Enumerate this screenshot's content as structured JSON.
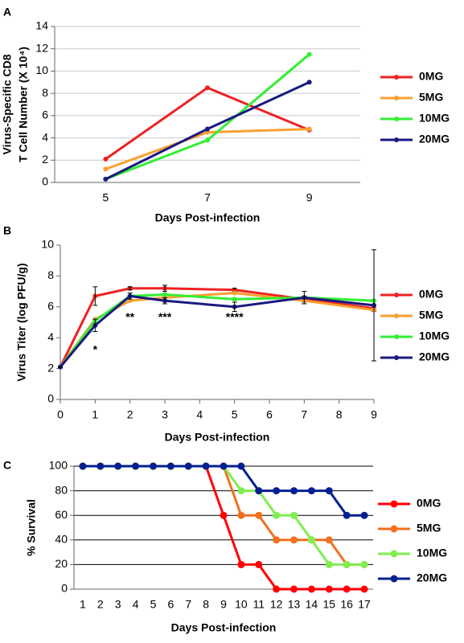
{
  "chart_data": [
    {
      "type": "line",
      "panel": "A",
      "ylabel": [
        "Virus-Specific CD8",
        "T Cell Number (X 10⁴)"
      ],
      "xlabel": "Days Post-infection",
      "categories": [
        "5",
        "7",
        "9"
      ],
      "ylim": [
        0,
        14
      ],
      "yticks": [
        0,
        2,
        4,
        6,
        8,
        10,
        12,
        14
      ],
      "grid": true,
      "grid_color": "#c8c8c8",
      "series": [
        {
          "name": "0MG",
          "color": "#ee2222",
          "values": [
            2.1,
            8.5,
            4.7
          ]
        },
        {
          "name": "5MG",
          "color": "#f8a030",
          "values": [
            1.2,
            4.5,
            4.8
          ]
        },
        {
          "name": "10MG",
          "color": "#33ee33",
          "values": [
            0.3,
            3.8,
            11.5
          ]
        },
        {
          "name": "20MG",
          "color": "#1a1a80",
          "values": [
            0.3,
            4.8,
            9.0
          ]
        }
      ]
    },
    {
      "type": "line",
      "panel": "B",
      "ylabel": [
        "Virus Titer (log PFU/g)"
      ],
      "xlabel": "Days Post-infection",
      "x": [
        0,
        1,
        2,
        3,
        5,
        7,
        9
      ],
      "xlim": [
        0,
        9
      ],
      "xticks": [
        0,
        1,
        2,
        3,
        4,
        5,
        6,
        7,
        8,
        9
      ],
      "ylim": [
        0,
        10
      ],
      "yticks": [
        0,
        2,
        4,
        6,
        8,
        10
      ],
      "grid": false,
      "series": [
        {
          "name": "0MG",
          "color": "#ee2222",
          "values": [
            2.1,
            6.7,
            7.2,
            7.2,
            7.1,
            6.5,
            5.9
          ],
          "errors": [
            0,
            0.6,
            0.1,
            0.2,
            0.1,
            0.2,
            0.2
          ]
        },
        {
          "name": "5MG",
          "color": "#f8a030",
          "values": [
            2.1,
            5.2,
            6.4,
            6.6,
            6.9,
            6.4,
            5.8
          ]
        },
        {
          "name": "10MG",
          "color": "#33ee33",
          "values": [
            2.1,
            5.1,
            6.7,
            6.8,
            6.5,
            6.6,
            6.4
          ]
        },
        {
          "name": "20MG",
          "color": "#1a1a80",
          "values": [
            2.1,
            4.8,
            6.7,
            6.4,
            6.0,
            6.6,
            6.1
          ],
          "errors": [
            0,
            0.4,
            0.2,
            0.2,
            0.3,
            0.4,
            3.6
          ]
        }
      ],
      "annotations": [
        {
          "text": "*",
          "x": 1,
          "y": 3.2
        },
        {
          "text": "**",
          "x": 2,
          "y": 5.3
        },
        {
          "text": "***",
          "x": 3,
          "y": 5.3
        },
        {
          "text": "****",
          "x": 5,
          "y": 5.3
        }
      ]
    },
    {
      "type": "line",
      "panel": "C",
      "ylabel": [
        "% Survival"
      ],
      "xlabel": "Days Post-infection",
      "categories": [
        "1",
        "2",
        "3",
        "4",
        "5",
        "6",
        "7",
        "8",
        "9",
        "10",
        "11",
        "12",
        "13",
        "14",
        "15",
        "16",
        "17"
      ],
      "ylim": [
        0,
        100
      ],
      "yticks": [
        0,
        20,
        40,
        60,
        80,
        100
      ],
      "grid": true,
      "grid_color": "#000000",
      "series": [
        {
          "name": "0MG",
          "color": "#ff0000",
          "values": [
            100,
            100,
            100,
            100,
            100,
            100,
            100,
            100,
            60,
            20,
            20,
            0,
            0,
            0,
            0,
            0,
            0
          ]
        },
        {
          "name": "5MG",
          "color": "#f07020",
          "values": [
            100,
            100,
            100,
            100,
            100,
            100,
            100,
            100,
            100,
            60,
            60,
            40,
            40,
            40,
            40,
            20,
            20
          ]
        },
        {
          "name": "10MG",
          "color": "#80ee50",
          "values": [
            100,
            100,
            100,
            100,
            100,
            100,
            100,
            100,
            100,
            80,
            80,
            60,
            60,
            40,
            20,
            20,
            20
          ]
        },
        {
          "name": "20MG",
          "color": "#002090",
          "values": [
            100,
            100,
            100,
            100,
            100,
            100,
            100,
            100,
            100,
            100,
            80,
            80,
            80,
            80,
            80,
            60,
            60
          ]
        }
      ]
    }
  ]
}
